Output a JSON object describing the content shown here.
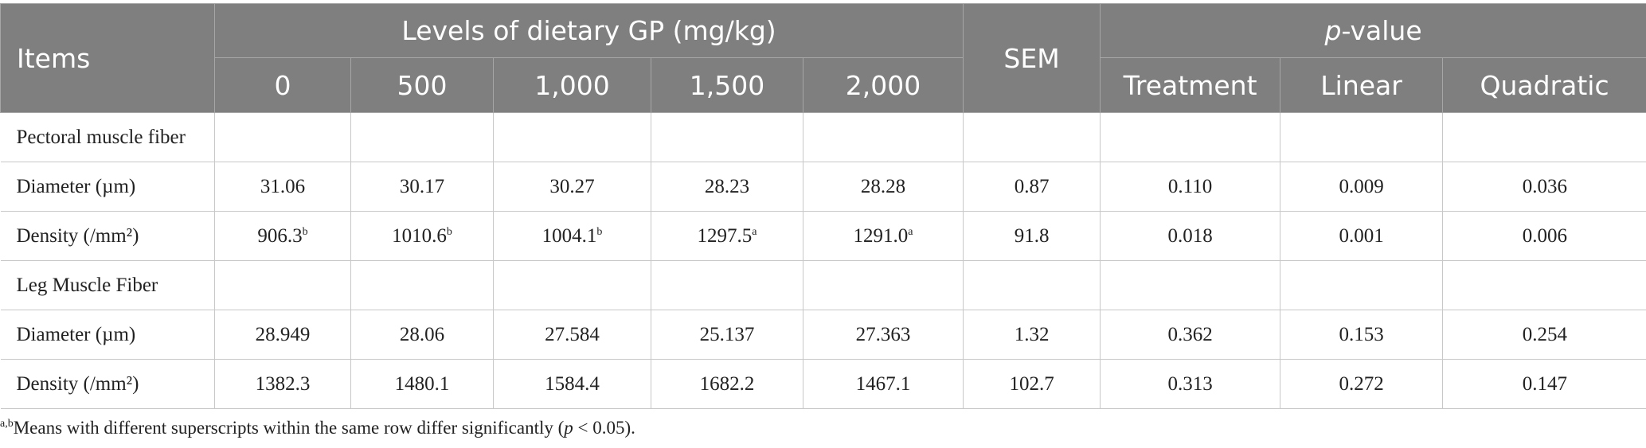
{
  "header": {
    "items": "Items",
    "group": "Levels of dietary GP (mg/kg)",
    "levels": [
      "0",
      "500",
      "1,000",
      "1,500",
      "2,000"
    ],
    "sem": "SEM",
    "pvalue": {
      "italic": "p",
      "text": "-value"
    },
    "pcols": [
      "Treatment",
      "Linear",
      "Quadratic"
    ]
  },
  "rows": [
    {
      "section": "Pectoral muscle fiber"
    },
    {
      "label": "Diameter (µm)",
      "cells": [
        "31.06",
        "30.17",
        "30.27",
        "28.23",
        "28.28",
        "0.87",
        "0.110",
        "0.009",
        "0.036"
      ]
    },
    {
      "label": "Density (/mm²)",
      "cells": [
        {
          "text": "906.3",
          "sup": "b"
        },
        {
          "text": "1010.6",
          "sup": "b"
        },
        {
          "text": "1004.1",
          "sup": "b"
        },
        {
          "text": "1297.5",
          "sup": "a"
        },
        {
          "text": "1291.0",
          "sup": "a"
        },
        "91.8",
        "0.018",
        "0.001",
        "0.006"
      ]
    },
    {
      "section": "Leg Muscle Fiber"
    },
    {
      "label": "Diameter (µm)",
      "cells": [
        "28.949",
        "28.06",
        "27.584",
        "25.137",
        "27.363",
        "1.32",
        "0.362",
        "0.153",
        "0.254"
      ]
    },
    {
      "label": "Density (/mm²)",
      "cells": [
        "1382.3",
        "1480.1",
        "1584.4",
        "1682.2",
        "1467.1",
        "102.7",
        "0.313",
        "0.272",
        "0.147"
      ]
    }
  ],
  "footnote": {
    "sup": "a,b",
    "text": "Means with different superscripts within the same row differ significantly (",
    "italic": "p",
    "end": " < 0.05)."
  }
}
